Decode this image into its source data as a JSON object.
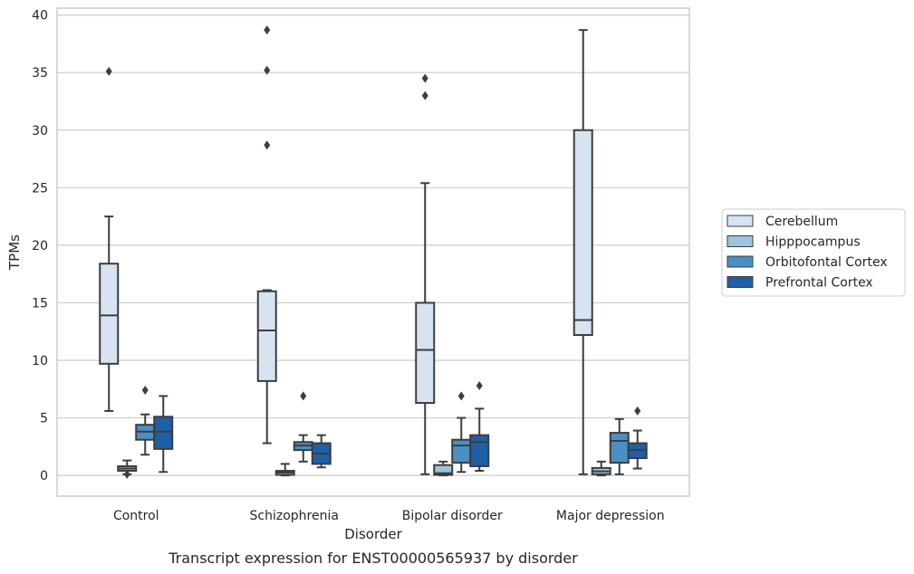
{
  "chart_data": {
    "type": "box",
    "title": "",
    "caption": "Transcript expression for ENST00000565937 by disorder",
    "xlabel": "Disorder",
    "ylabel": "TPMs",
    "ylim": [
      -1.8,
      40.6
    ],
    "yticks": [
      0,
      5,
      10,
      15,
      20,
      25,
      30,
      35,
      40
    ],
    "grid": "horizontal",
    "legend_position": "right",
    "categories": [
      "Control",
      "Schizophrenia",
      "Bipolar disorder",
      "Major depression"
    ],
    "series": [
      {
        "name": "Cerebellum",
        "color": "#d6e3f1",
        "boxes": [
          {
            "whisker_low": 5.6,
            "q1": 9.7,
            "median": 13.9,
            "q3": 18.4,
            "whisker_high": 22.5,
            "outliers": [
              35.1
            ]
          },
          {
            "whisker_low": 2.8,
            "q1": 8.2,
            "median": 12.6,
            "q3": 16.0,
            "whisker_high": 16.1,
            "outliers": [
              28.7,
              35.2,
              38.7
            ]
          },
          {
            "whisker_low": 0.1,
            "q1": 6.3,
            "median": 10.9,
            "q3": 15.0,
            "whisker_high": 25.4,
            "outliers": [
              33.0,
              34.5
            ]
          },
          {
            "whisker_low": 0.1,
            "q1": 12.2,
            "median": 13.5,
            "q3": 30.0,
            "whisker_high": 38.7,
            "outliers": []
          }
        ]
      },
      {
        "name": "Hipppocampus",
        "color": "#9dc4de",
        "boxes": [
          {
            "whisker_low": 0.1,
            "q1": 0.4,
            "median": 0.6,
            "q3": 0.8,
            "whisker_high": 1.3,
            "outliers": [
              0.1
            ]
          },
          {
            "whisker_low": 0.0,
            "q1": 0.05,
            "median": 0.25,
            "q3": 0.4,
            "whisker_high": 1.0,
            "outliers": []
          },
          {
            "whisker_low": 0.0,
            "q1": 0.05,
            "median": 0.2,
            "q3": 0.9,
            "whisker_high": 1.2,
            "outliers": []
          },
          {
            "whisker_low": 0.0,
            "q1": 0.1,
            "median": 0.35,
            "q3": 0.65,
            "whisker_high": 1.2,
            "outliers": []
          }
        ]
      },
      {
        "name": "Orbitofontal Cortex",
        "color": "#4a90c4",
        "boxes": [
          {
            "whisker_low": 1.8,
            "q1": 3.1,
            "median": 3.8,
            "q3": 4.4,
            "whisker_high": 5.3,
            "outliers": [
              7.4
            ]
          },
          {
            "whisker_low": 1.2,
            "q1": 2.2,
            "median": 2.6,
            "q3": 2.9,
            "whisker_high": 3.5,
            "outliers": [
              6.9
            ]
          },
          {
            "whisker_low": 0.3,
            "q1": 1.1,
            "median": 2.6,
            "q3": 3.1,
            "whisker_high": 5.0,
            "outliers": [
              6.9
            ]
          },
          {
            "whisker_low": 0.1,
            "q1": 1.1,
            "median": 3.0,
            "q3": 3.7,
            "whisker_high": 4.9,
            "outliers": []
          }
        ]
      },
      {
        "name": "Prefrontal Cortex",
        "color": "#1f5fa8",
        "boxes": [
          {
            "whisker_low": 0.3,
            "q1": 2.3,
            "median": 3.8,
            "q3": 5.1,
            "whisker_high": 6.9,
            "outliers": []
          },
          {
            "whisker_low": 0.7,
            "q1": 1.0,
            "median": 1.9,
            "q3": 2.8,
            "whisker_high": 3.5,
            "outliers": []
          },
          {
            "whisker_low": 0.4,
            "q1": 0.8,
            "median": 2.9,
            "q3": 3.5,
            "whisker_high": 5.8,
            "outliers": [
              7.8
            ]
          },
          {
            "whisker_low": 0.6,
            "q1": 1.5,
            "median": 2.2,
            "q3": 2.8,
            "whisker_high": 3.9,
            "outliers": [
              5.6
            ]
          }
        ]
      }
    ]
  }
}
